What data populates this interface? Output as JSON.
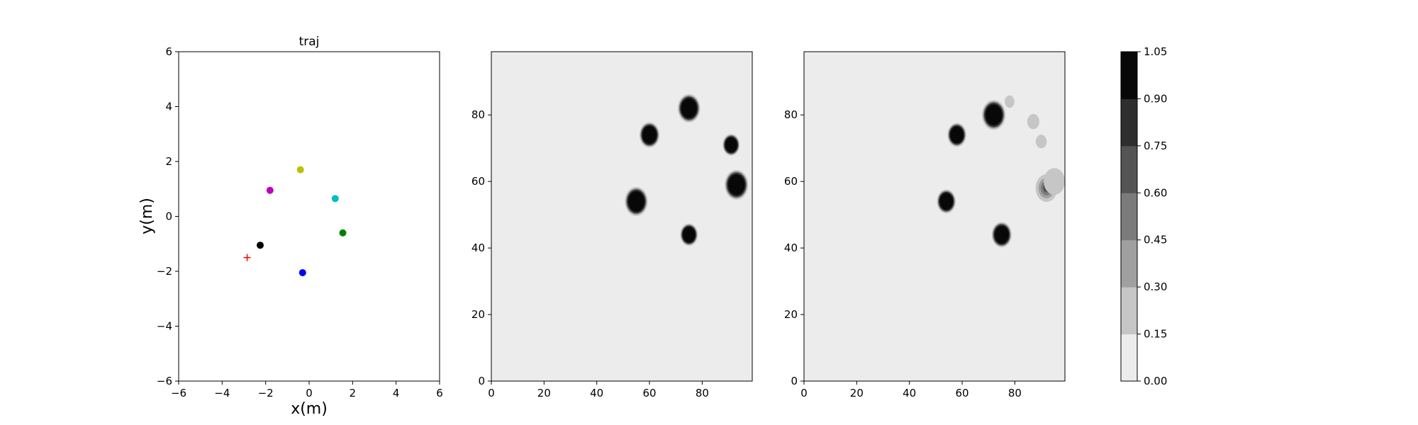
{
  "chart_data": [
    {
      "type": "scatter",
      "title": "traj",
      "xlabel": "x(m)",
      "ylabel": "y(m)",
      "xlim": [
        -6,
        6
      ],
      "ylim": [
        -6,
        6
      ],
      "xticks": [
        "−6",
        "−4",
        "−2",
        "0",
        "2",
        "4",
        "6"
      ],
      "yticks": [
        "−6",
        "−4",
        "−2",
        "0",
        "2",
        "4",
        "6"
      ],
      "grid": false,
      "points": [
        {
          "x": -0.4,
          "y": 1.7,
          "color": "#bfbf00",
          "marker": "circle"
        },
        {
          "x": -1.8,
          "y": 0.95,
          "color": "#bf00bf",
          "marker": "circle"
        },
        {
          "x": 1.2,
          "y": 0.65,
          "color": "#00bfbf",
          "marker": "circle"
        },
        {
          "x": 1.55,
          "y": -0.6,
          "color": "#008000",
          "marker": "circle"
        },
        {
          "x": -2.25,
          "y": -1.05,
          "color": "#000000",
          "marker": "circle"
        },
        {
          "x": -0.3,
          "y": -2.05,
          "color": "#0000ff",
          "marker": "circle"
        },
        {
          "x": -2.85,
          "y": -1.5,
          "color": "#ff0000",
          "marker": "plus"
        }
      ]
    },
    {
      "type": "heatmap",
      "xlim": [
        0,
        99
      ],
      "ylim": [
        0,
        99
      ],
      "xticks": [
        "0",
        "20",
        "40",
        "60",
        "80"
      ],
      "yticks": [
        "0",
        "20",
        "40",
        "60",
        "80"
      ],
      "background_level": 0.05,
      "blobs": [
        {
          "x": 75,
          "y": 82,
          "r": 3.8,
          "level": 1.0
        },
        {
          "x": 60,
          "y": 74,
          "r": 3.4,
          "level": 1.0
        },
        {
          "x": 91,
          "y": 71,
          "r": 2.9,
          "level": 1.0
        },
        {
          "x": 93,
          "y": 59,
          "r": 4.0,
          "level": 1.0
        },
        {
          "x": 55,
          "y": 54,
          "r": 3.9,
          "level": 1.0
        },
        {
          "x": 75,
          "y": 44,
          "r": 3.0,
          "level": 1.0
        }
      ]
    },
    {
      "type": "heatmap",
      "xlim": [
        0,
        99
      ],
      "ylim": [
        0,
        99
      ],
      "xticks": [
        "0",
        "20",
        "40",
        "60",
        "80"
      ],
      "yticks": [
        "0",
        "20",
        "40",
        "60",
        "80"
      ],
      "background_level": 0.05,
      "blobs": [
        {
          "x": 72,
          "y": 80,
          "r": 4.0,
          "level": 0.95
        },
        {
          "x": 58,
          "y": 74,
          "r": 3.2,
          "level": 0.95
        },
        {
          "x": 54,
          "y": 54,
          "r": 3.2,
          "level": 0.95
        },
        {
          "x": 75,
          "y": 44,
          "r": 3.4,
          "level": 0.97
        },
        {
          "x": 92,
          "y": 58,
          "r": 3.6,
          "level": 0.7
        },
        {
          "x": 78,
          "y": 84,
          "r": 1.6,
          "level": 0.25
        },
        {
          "x": 87,
          "y": 78,
          "r": 2.0,
          "level": 0.25
        },
        {
          "x": 90,
          "y": 72,
          "r": 1.8,
          "level": 0.25
        },
        {
          "x": 95,
          "y": 60,
          "r": 3.5,
          "level": 0.25
        }
      ]
    }
  ],
  "colorbar": {
    "levels": [
      "0.00",
      "0.15",
      "0.30",
      "0.45",
      "0.60",
      "0.75",
      "0.90",
      "1.05"
    ],
    "colors": [
      "#ececec",
      "#c6c6c6",
      "#a0a0a0",
      "#7b7b7b",
      "#545454",
      "#2e2e2e",
      "#080808"
    ]
  }
}
